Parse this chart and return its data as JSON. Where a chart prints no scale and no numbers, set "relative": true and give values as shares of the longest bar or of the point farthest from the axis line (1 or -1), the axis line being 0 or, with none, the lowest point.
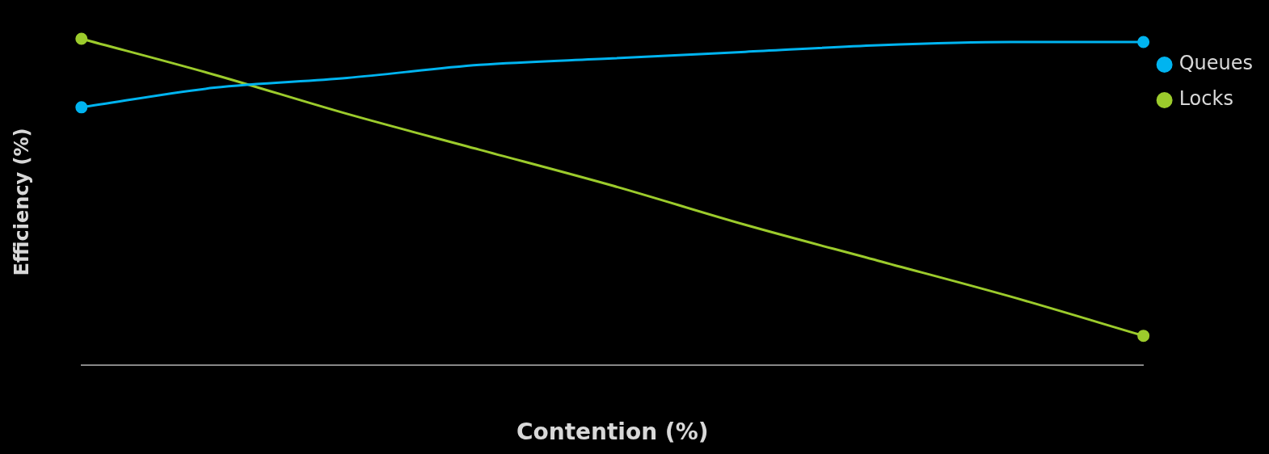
{
  "chart_data": {
    "type": "line",
    "relative": true,
    "xlabel": "Contention (%)",
    "ylabel": "Efficiency (%)",
    "legend": "right",
    "line_style": "solid",
    "categories": [
      null,
      null,
      null,
      null,
      null,
      null,
      null,
      null,
      null
    ],
    "series": [
      {
        "name": "Queues",
        "color": "#00b4f0",
        "values": [
          0.79,
          0.85,
          0.88,
          0.92,
          0.94,
          0.96,
          0.98,
          0.99,
          0.99
        ]
      },
      {
        "name": "Locks",
        "color": "#9ccb2c",
        "values": [
          1,
          0.89,
          0.77,
          0.66,
          0.55,
          0.43,
          0.32,
          0.21,
          0.09
        ]
      }
    ]
  }
}
